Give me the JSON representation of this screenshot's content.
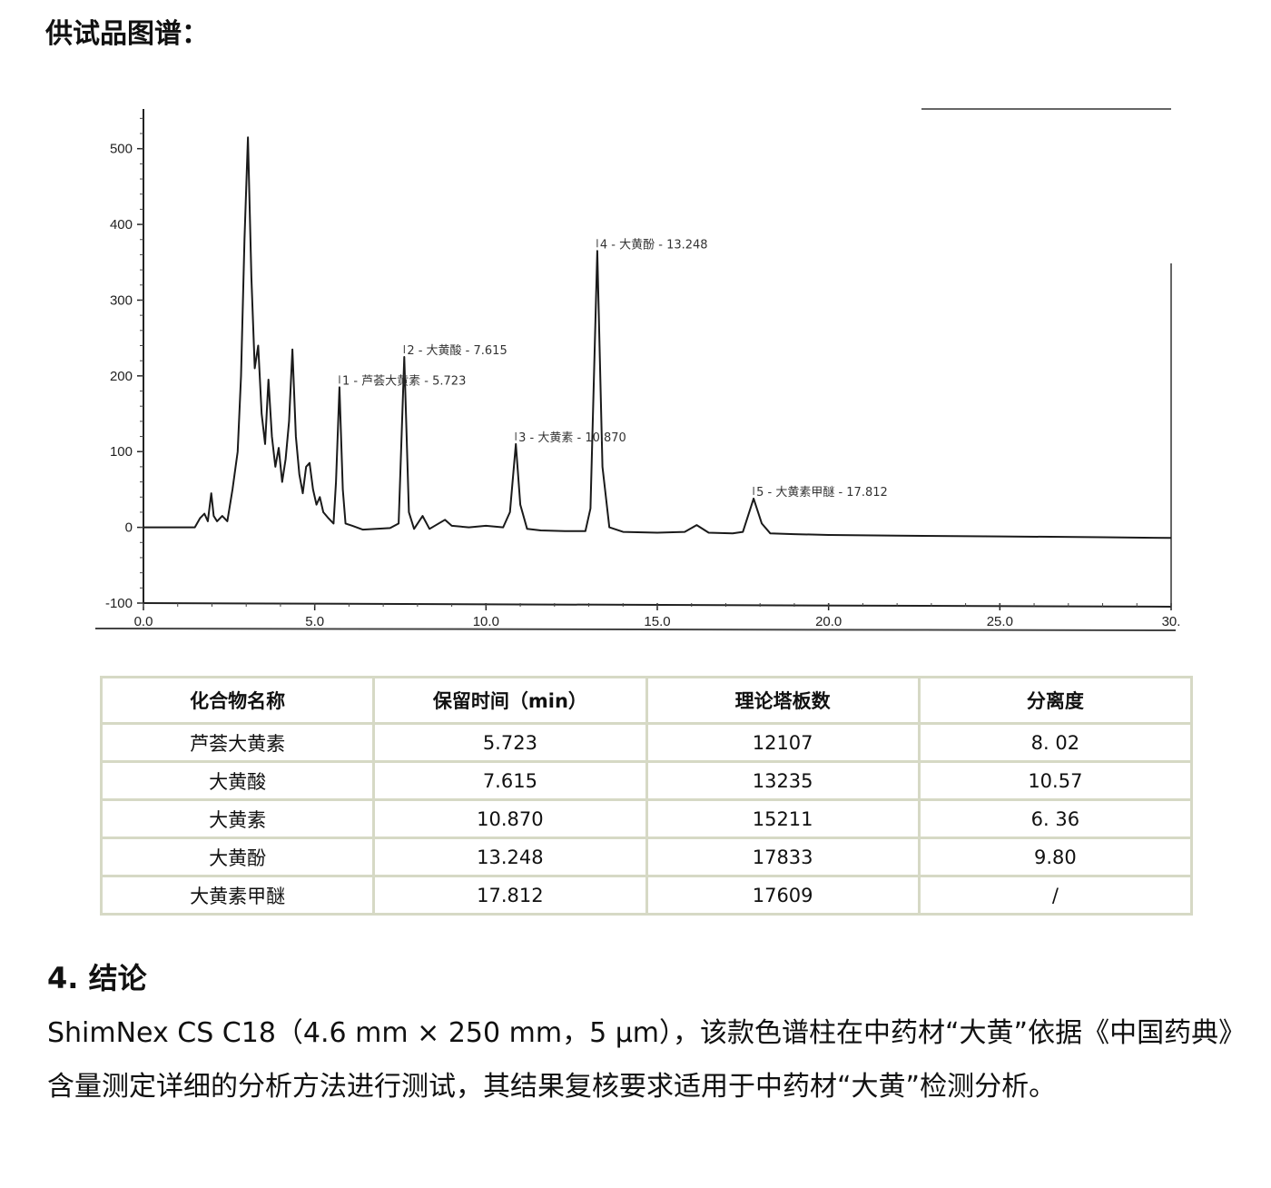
{
  "section_title": "供试品图谱：",
  "chart_data": {
    "type": "line",
    "title": "",
    "xlabel": "",
    "ylabel": "",
    "xlim": [
      0,
      30
    ],
    "ylim": [
      -100,
      550
    ],
    "x_ticks": [
      "0.0",
      "5.0",
      "10.0",
      "15.0",
      "20.0",
      "25.0",
      "30."
    ],
    "y_ticks": [
      "500",
      "400",
      "300",
      "200",
      "100",
      "0",
      "-100"
    ],
    "grid": false,
    "peaks": [
      {
        "label": "1 - 芦荟大黄素 - 5.723",
        "x": 5.723,
        "y": 185
      },
      {
        "label": "2 - 大黄酸 - 7.615",
        "x": 7.615,
        "y": 225
      },
      {
        "label": "3 - 大黄素 - 10.870",
        "x": 10.87,
        "y": 110
      },
      {
        "label": "4 - 大黄酚 - 13.248",
        "x": 13.248,
        "y": 365
      },
      {
        "label": "5 - 大黄素甲醚 - 17.812",
        "x": 17.812,
        "y": 38
      }
    ],
    "trace": [
      [
        0,
        0
      ],
      [
        1.5,
        0
      ],
      [
        1.65,
        12
      ],
      [
        1.78,
        18
      ],
      [
        1.88,
        8
      ],
      [
        1.98,
        45
      ],
      [
        2.05,
        15
      ],
      [
        2.15,
        8
      ],
      [
        2.3,
        15
      ],
      [
        2.45,
        8
      ],
      [
        2.6,
        50
      ],
      [
        2.75,
        100
      ],
      [
        2.85,
        200
      ],
      [
        2.95,
        380
      ],
      [
        3.05,
        515
      ],
      [
        3.15,
        330
      ],
      [
        3.25,
        210
      ],
      [
        3.35,
        240
      ],
      [
        3.45,
        150
      ],
      [
        3.55,
        110
      ],
      [
        3.65,
        195
      ],
      [
        3.75,
        120
      ],
      [
        3.85,
        80
      ],
      [
        3.95,
        105
      ],
      [
        4.05,
        60
      ],
      [
        4.15,
        90
      ],
      [
        4.25,
        140
      ],
      [
        4.35,
        235
      ],
      [
        4.45,
        120
      ],
      [
        4.55,
        70
      ],
      [
        4.65,
        45
      ],
      [
        4.75,
        80
      ],
      [
        4.85,
        85
      ],
      [
        4.95,
        50
      ],
      [
        5.05,
        30
      ],
      [
        5.15,
        40
      ],
      [
        5.25,
        20
      ],
      [
        5.4,
        12
      ],
      [
        5.55,
        5
      ],
      [
        5.62,
        60
      ],
      [
        5.723,
        185
      ],
      [
        5.82,
        50
      ],
      [
        5.9,
        5
      ],
      [
        6.1,
        2
      ],
      [
        6.4,
        -3
      ],
      [
        6.8,
        -2
      ],
      [
        7.2,
        -1
      ],
      [
        7.45,
        5
      ],
      [
        7.615,
        225
      ],
      [
        7.75,
        20
      ],
      [
        7.9,
        -2
      ],
      [
        8.15,
        15
      ],
      [
        8.35,
        -2
      ],
      [
        8.8,
        10
      ],
      [
        9.0,
        2
      ],
      [
        9.5,
        0
      ],
      [
        10.0,
        2
      ],
      [
        10.5,
        0
      ],
      [
        10.7,
        20
      ],
      [
        10.87,
        110
      ],
      [
        11.0,
        30
      ],
      [
        11.2,
        -2
      ],
      [
        11.6,
        -4
      ],
      [
        12.3,
        -5
      ],
      [
        12.9,
        -5
      ],
      [
        13.05,
        25
      ],
      [
        13.248,
        365
      ],
      [
        13.4,
        80
      ],
      [
        13.6,
        0
      ],
      [
        14.0,
        -6
      ],
      [
        15.0,
        -7
      ],
      [
        15.8,
        -6
      ],
      [
        16.15,
        3
      ],
      [
        16.5,
        -7
      ],
      [
        17.2,
        -8
      ],
      [
        17.5,
        -6
      ],
      [
        17.812,
        38
      ],
      [
        18.05,
        5
      ],
      [
        18.3,
        -8
      ],
      [
        19.0,
        -9
      ],
      [
        20.0,
        -10
      ],
      [
        22.0,
        -11
      ],
      [
        25.0,
        -12
      ],
      [
        28.0,
        -13
      ],
      [
        30.0,
        -14
      ]
    ]
  },
  "table": {
    "headers": [
      "化合物名称",
      "保留时间（min）",
      "理论塔板数",
      "分离度"
    ],
    "rows": [
      [
        "芦荟大黄素",
        "5.723",
        "12107",
        "8. 02"
      ],
      [
        "大黄酸",
        "7.615",
        "13235",
        "10.57"
      ],
      [
        "大黄素",
        "10.870",
        "15211",
        "6. 36"
      ],
      [
        "大黄酚",
        "13.248",
        "17833",
        "9.80"
      ],
      [
        "大黄素甲醚",
        "17.812",
        "17609",
        "/"
      ]
    ]
  },
  "conclusion": {
    "heading": "4. 结论",
    "body": "ShimNex CS C18（4.6 mm × 250 mm，5 μm），该款色谱柱在中药材“大黄”依据《中国药典》含量测定详细的分析方法进行测试，其结果复核要求适用于中药材“大黄”检测分析。"
  }
}
